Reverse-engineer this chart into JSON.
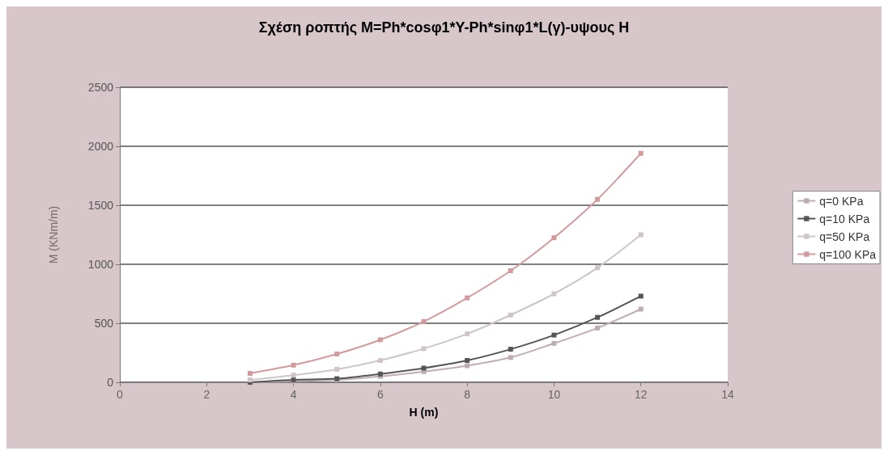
{
  "chart_data": {
    "type": "line",
    "title": "Σχέση ροπτής M=Ph*cosφ1*Y-Ph*sinφ1*L(γ)-υψους H",
    "xlabel": "H (m)",
    "ylabel": "M (KNm/m)",
    "x": [
      3,
      4,
      5,
      6,
      7,
      8,
      9,
      10,
      11,
      12
    ],
    "xlim": [
      0,
      14
    ],
    "xticks": [
      0,
      2,
      4,
      6,
      8,
      10,
      12,
      14
    ],
    "ylim": [
      0,
      2500
    ],
    "yticks": [
      0,
      500,
      1000,
      1500,
      2000,
      2500
    ],
    "grid": "y",
    "legend": "right",
    "marker": "square",
    "line_style": "solid",
    "series": [
      {
        "name": "q=0 KPa",
        "color": "#bfaeb0",
        "values": [
          0,
          10,
          20,
          50,
          90,
          140,
          210,
          330,
          460,
          620
        ]
      },
      {
        "name": "q=10 KPa",
        "color": "#555555",
        "values": [
          0,
          20,
          30,
          70,
          120,
          185,
          280,
          400,
          550,
          730
        ]
      },
      {
        "name": "q=50 KPa",
        "color": "#cfc5c7",
        "values": [
          20,
          60,
          110,
          185,
          285,
          410,
          570,
          750,
          970,
          1250
        ]
      },
      {
        "name": "q=100 KPa",
        "color": "#d39a9e",
        "values": [
          75,
          145,
          240,
          360,
          515,
          715,
          945,
          1225,
          1550,
          1940
        ]
      }
    ]
  }
}
